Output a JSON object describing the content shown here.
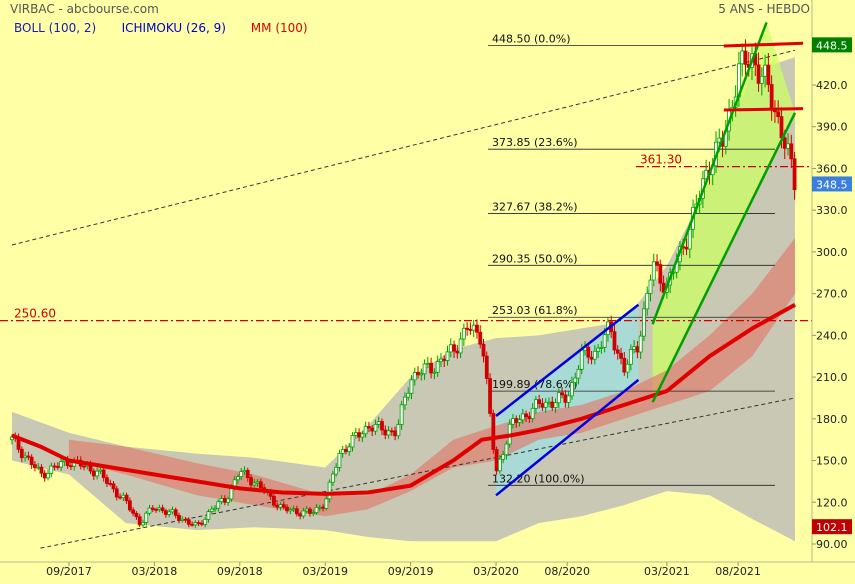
{
  "header": {
    "source": "VIRBAC - abcbourse.com",
    "period": "5 ANS - HEBDO",
    "indicators": [
      {
        "label": "BOLL (100, 2)",
        "color": "#1A1AB0"
      },
      {
        "label": "ICHIMOKU (26, 9)",
        "color": "#0000CC"
      },
      {
        "label": "MM (100)",
        "color": "#E00000"
      }
    ]
  },
  "chart_data": {
    "type": "candlestick",
    "title": "VIRBAC - abcbourse.com",
    "subtitle": "5 ANS - HEBDO",
    "xlabel": "",
    "ylabel": "",
    "x_range": [
      "2017-05",
      "2021-12"
    ],
    "y_range": [
      87,
      465
    ],
    "grid": false,
    "colors": {
      "background": "#FFFFA6",
      "up": "#00A000",
      "down": "#D00000",
      "bollinger": "#C8C8B4",
      "cloud": "#E07A6A",
      "ma": "#E00000",
      "price_tag": "#3A7FE0",
      "high_tag": "#008000",
      "low_tag": "#C00000"
    },
    "x_tick_labels": [
      "09/2017",
      "03/2018",
      "09/2018",
      "03/2019",
      "09/2019",
      "03/2020",
      "08/2020",
      "03/2021",
      "08/2021"
    ],
    "y_tick_labels": [
      "90.00",
      "120.0",
      "150.0",
      "180.0",
      "210.0",
      "240.0",
      "270.0",
      "300.0",
      "330.0",
      "360.0",
      "390.0",
      "420.0"
    ],
    "price_tags": {
      "high": "448.5",
      "last": "348.5",
      "low": "102.1"
    },
    "price_path": [
      [
        "2017-05",
        165
      ],
      [
        "2017-07",
        140
      ],
      [
        "2017-09",
        150
      ],
      [
        "2017-11",
        142
      ],
      [
        "2018-01",
        120
      ],
      [
        "2018-02",
        105
      ],
      [
        "2018-03",
        117
      ],
      [
        "2018-05",
        108
      ],
      [
        "2018-06",
        102
      ],
      [
        "2018-07",
        115
      ],
      [
        "2018-08",
        122
      ],
      [
        "2018-09",
        142
      ],
      [
        "2018-10",
        135
      ],
      [
        "2018-12",
        115
      ],
      [
        "2019-02",
        112
      ],
      [
        "2019-03",
        120
      ],
      [
        "2019-04",
        155
      ],
      [
        "2019-06",
        175
      ],
      [
        "2019-08",
        170
      ],
      [
        "2019-09",
        210
      ],
      [
        "2019-11",
        220
      ],
      [
        "2019-12",
        230
      ],
      [
        "2020-01",
        245
      ],
      [
        "2020-02",
        240
      ],
      [
        "2020-03",
        140
      ],
      [
        "2020-04",
        175
      ],
      [
        "2020-06",
        190
      ],
      [
        "2020-08",
        195
      ],
      [
        "2020-09",
        225
      ],
      [
        "2020-10",
        228
      ],
      [
        "2020-11",
        245
      ],
      [
        "2020-12",
        215
      ],
      [
        "2021-01",
        235
      ],
      [
        "2021-02",
        290
      ],
      [
        "2021-03",
        275
      ],
      [
        "2021-04",
        300
      ],
      [
        "2021-05",
        330
      ],
      [
        "2021-06",
        365
      ],
      [
        "2021-07",
        380
      ],
      [
        "2021-08",
        430
      ],
      [
        "2021-09",
        440
      ],
      [
        "2021-10",
        420
      ],
      [
        "2021-11",
        390
      ],
      [
        "2021-12",
        348.5
      ]
    ],
    "moving_average": [
      [
        "2017-05",
        168
      ],
      [
        "2017-07",
        160
      ],
      [
        "2017-09",
        150
      ],
      [
        "2017-12",
        145
      ],
      [
        "2018-03",
        140
      ],
      [
        "2018-06",
        135
      ],
      [
        "2018-09",
        130
      ],
      [
        "2018-12",
        127
      ],
      [
        "2019-03",
        126
      ],
      [
        "2019-06",
        127
      ],
      [
        "2019-09",
        132
      ],
      [
        "2019-12",
        150
      ],
      [
        "2020-02",
        165
      ],
      [
        "2020-04",
        168
      ],
      [
        "2020-06",
        172
      ],
      [
        "2020-09",
        180
      ],
      [
        "2020-12",
        190
      ],
      [
        "2021-03",
        200
      ],
      [
        "2021-06",
        225
      ],
      [
        "2021-09",
        245
      ],
      [
        "2021-12",
        262
      ]
    ],
    "bollinger_upper": [
      [
        "2017-05",
        185
      ],
      [
        "2017-09",
        170
      ],
      [
        "2018-01",
        160
      ],
      [
        "2018-06",
        155
      ],
      [
        "2018-10",
        152
      ],
      [
        "2019-03",
        145
      ],
      [
        "2019-06",
        175
      ],
      [
        "2019-09",
        210
      ],
      [
        "2019-12",
        230
      ],
      [
        "2020-03",
        238
      ],
      [
        "2020-06",
        240
      ],
      [
        "2020-09",
        245
      ],
      [
        "2020-12",
        250
      ],
      [
        "2021-03",
        290
      ],
      [
        "2021-06",
        350
      ],
      [
        "2021-09",
        430
      ],
      [
        "2021-12",
        440
      ]
    ],
    "bollinger_lower": [
      [
        "2017-05",
        150
      ],
      [
        "2017-09",
        140
      ],
      [
        "2018-01",
        105
      ],
      [
        "2018-06",
        100
      ],
      [
        "2018-10",
        102
      ],
      [
        "2019-03",
        100
      ],
      [
        "2019-06",
        95
      ],
      [
        "2019-09",
        92
      ],
      [
        "2019-12",
        92
      ],
      [
        "2020-03",
        92
      ],
      [
        "2020-06",
        105
      ],
      [
        "2020-09",
        110
      ],
      [
        "2020-12",
        118
      ],
      [
        "2021-03",
        128
      ],
      [
        "2021-06",
        125
      ],
      [
        "2021-09",
        108
      ],
      [
        "2021-12",
        92
      ]
    ],
    "cloud_top": [
      [
        "2017-09",
        165
      ],
      [
        "2018-01",
        160
      ],
      [
        "2018-06",
        148
      ],
      [
        "2018-10",
        140
      ],
      [
        "2019-03",
        125
      ],
      [
        "2019-06",
        125
      ],
      [
        "2019-09",
        140
      ],
      [
        "2019-12",
        165
      ],
      [
        "2020-03",
        175
      ],
      [
        "2020-06",
        185
      ],
      [
        "2020-09",
        190
      ],
      [
        "2020-12",
        200
      ],
      [
        "2021-03",
        215
      ],
      [
        "2021-06",
        240
      ],
      [
        "2021-09",
        270
      ],
      [
        "2021-12",
        310
      ]
    ],
    "cloud_bottom": [
      [
        "2017-09",
        150
      ],
      [
        "2018-01",
        140
      ],
      [
        "2018-06",
        125
      ],
      [
        "2018-10",
        118
      ],
      [
        "2019-03",
        110
      ],
      [
        "2019-06",
        115
      ],
      [
        "2019-09",
        128
      ],
      [
        "2019-12",
        145
      ],
      [
        "2020-03",
        150
      ],
      [
        "2020-06",
        165
      ],
      [
        "2020-09",
        170
      ],
      [
        "2020-12",
        180
      ],
      [
        "2021-03",
        190
      ],
      [
        "2021-06",
        200
      ],
      [
        "2021-09",
        225
      ],
      [
        "2021-12",
        270
      ]
    ],
    "fibonacci": [
      {
        "price": 448.5,
        "label": "448.50  (0.0%)"
      },
      {
        "price": 373.85,
        "label": "373.85  (23.6%)"
      },
      {
        "price": 327.67,
        "label": "327.67  (38.2%)"
      },
      {
        "price": 290.35,
        "label": "290.35  (50.0%)"
      },
      {
        "price": 253.03,
        "label": "253.03  (61.8%)"
      },
      {
        "price": 199.89,
        "label": "199.89  (78.6%)"
      },
      {
        "price": 132.2,
        "label": "132.20  (100.0%)"
      }
    ],
    "horizontal_lines": [
      {
        "price": 250.6,
        "label": "250.60",
        "style": "dash-dot",
        "color": "#D00000"
      },
      {
        "price": 361.3,
        "label": "361.30",
        "style": "dash-dot",
        "color": "#D00000"
      }
    ],
    "resistance_lines": [
      {
        "from": [
          "2021-07",
          448
        ],
        "to": [
          "2021-12",
          450
        ],
        "color": "#E00000"
      },
      {
        "from": [
          "2021-07",
          402
        ],
        "to": [
          "2021-12",
          403
        ],
        "color": "#E00000"
      }
    ],
    "channels": [
      {
        "color": "#0000E0",
        "fill": "#A0E0E0",
        "upper": [
          [
            "2020-03",
            182
          ],
          [
            "2021-01",
            262
          ]
        ],
        "lower": [
          [
            "2020-03",
            125
          ],
          [
            "2021-01",
            208
          ]
        ]
      },
      {
        "color": "#00A000",
        "fill": "#CCFF66",
        "upper": [
          [
            "2021-02",
            248
          ],
          [
            "2021-10",
            465
          ]
        ],
        "lower": [
          [
            "2021-02",
            192
          ],
          [
            "2021-12",
            400
          ]
        ]
      }
    ],
    "trendlines": [
      {
        "from": [
          "2017-05",
          305
        ],
        "to": [
          "2021-12",
          445
        ],
        "style": "dashed"
      },
      {
        "from": [
          "2017-07",
          87
        ],
        "to": [
          "2021-12",
          195
        ],
        "style": "dashed"
      }
    ]
  }
}
